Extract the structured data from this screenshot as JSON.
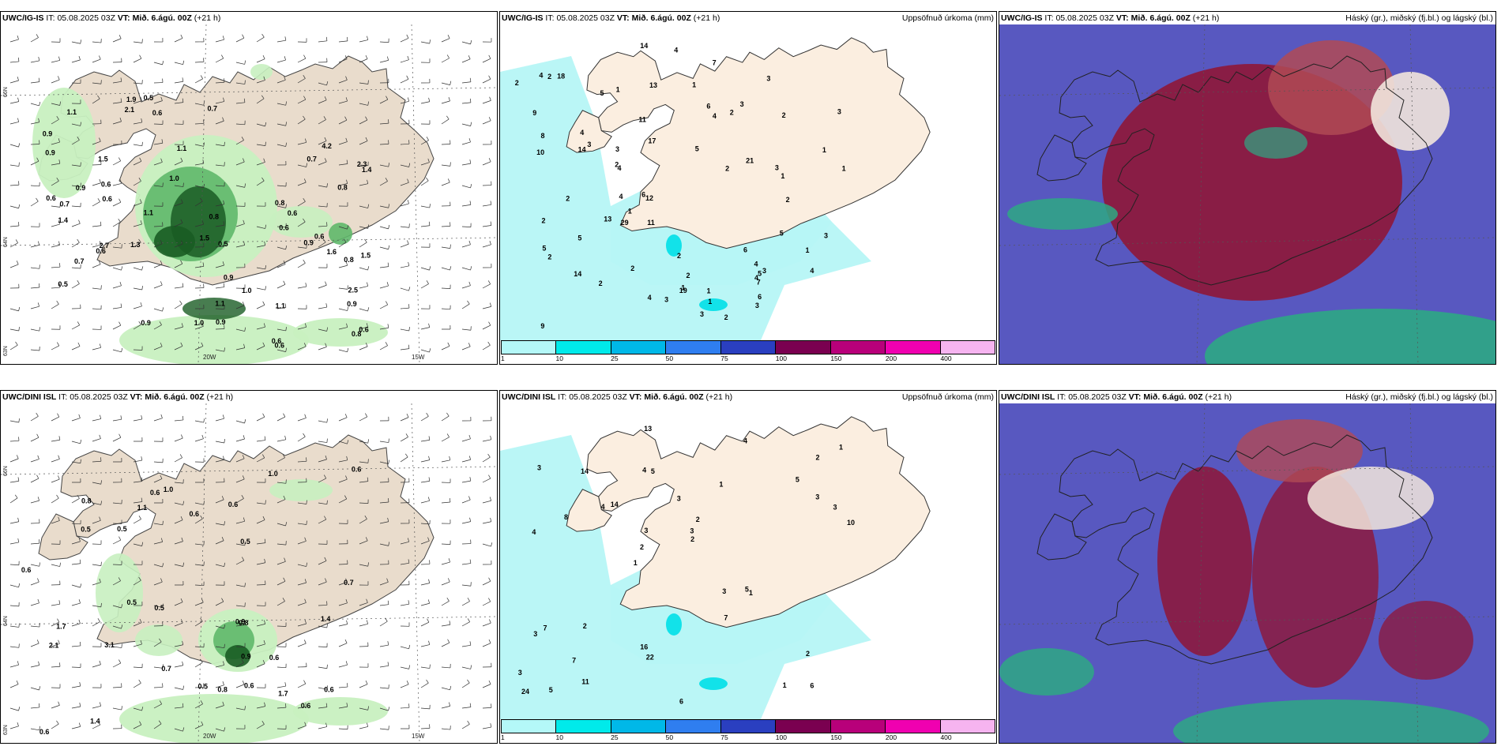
{
  "panels": {
    "p1": {
      "model": "UWC/IG-IS",
      "it_label": "IT:",
      "it_value": "05.08.2025 03Z",
      "vt_label": "VT:",
      "vt_value": "Mið. 6.ágú. 00Z",
      "lead": "(+21 h)",
      "right_title": ""
    },
    "p2": {
      "model": "UWC/IG-IS",
      "it_label": "IT:",
      "it_value": "05.08.2025 03Z",
      "vt_label": "VT:",
      "vt_value": "Mið. 6.ágú. 00Z",
      "lead": "(+21 h)",
      "right_title": "Uppsöfnuð úrkoma (mm)"
    },
    "p3": {
      "model": "UWC/IG-IS",
      "it_label": "IT:",
      "it_value": "05.08.2025 03Z",
      "vt_label": "VT:",
      "vt_value": "Mið. 6.ágú. 00Z",
      "lead": "(+21 h)",
      "right_title": "Háský (gr.), miðský (fj.bl.) og lágský (bl.)"
    },
    "p4": {
      "model": "UWC/DINI ISL",
      "it_label": "IT:",
      "it_value": "05.08.2025 03Z",
      "vt_label": "VT:",
      "vt_value": "Mið. 6.ágú. 00Z",
      "lead": "(+21 h)",
      "right_title": ""
    },
    "p5": {
      "model": "UWC/DINI ISL",
      "it_label": "IT:",
      "it_value": "05.08.2025 03Z",
      "vt_label": "VT:",
      "vt_value": "Mið. 6.ágú. 00Z",
      "lead": "(+21 h)",
      "right_title": "Uppsöfnuð úrkoma (mm)"
    },
    "p6": {
      "model": "UWC/DINI ISL",
      "it_label": "IT:",
      "it_value": "05.08.2025 03Z",
      "vt_label": "VT:",
      "vt_value": "Mið. 6.ágú. 00Z",
      "lead": "(+21 h)",
      "right_title": "Háský (gr.), miðský (fj.bl.) og lágský (bl.)"
    }
  },
  "grid_labels": {
    "lon_20w": "20W",
    "lon_15w": "15W",
    "lat_66n": "66N",
    "lat_64n": "64N",
    "lat_63n": "63N"
  },
  "colorbar": {
    "ticks": [
      "1",
      "10",
      "25",
      "50",
      "75",
      "100",
      "150",
      "200",
      "400"
    ],
    "colors": [
      "#b4f8f8",
      "#00eaea",
      "#00b8e8",
      "#2f7ef0",
      "#2a3fc0",
      "#7a0050",
      "#b8007a",
      "#f000b0",
      "#f6b4f0"
    ]
  },
  "colors": {
    "land": "#e9dccc",
    "ocean": "#ffffff",
    "precip_light": "#c8f0c0",
    "precip_dark": "#1a5c24",
    "precip_mid": "#5fb86a",
    "accum_light": "#b6f6f6",
    "cloud_blue": "#5858c0",
    "cloud_red": "#8c1a3e",
    "cloud_green": "#2ea884"
  },
  "p1_labels": [
    "2.5",
    "1.6",
    "4.2",
    "0.8",
    "1.1",
    "0.6",
    "1.4",
    "2.7",
    "0.5",
    "1.0",
    "0.7",
    "0.8",
    "0.6",
    "0.6",
    "1.1",
    "0.9",
    "0.7",
    "0.6",
    "0.8",
    "0.7",
    "1.5",
    "0.8",
    "0.8",
    "1.3",
    "0.6",
    "1.5",
    "1.4",
    "0.9",
    "0.9",
    "0.6",
    "0.6",
    "0.9",
    "2.3",
    "1.5",
    "0.6",
    "1.1",
    "1.0",
    "0.6",
    "0.9",
    "0.7",
    "0.5",
    "0.9",
    "1.1",
    "1.0",
    "2.1",
    "0.6",
    "1.9",
    "1.1",
    "0.5",
    "0.9",
    "0.6",
    "0.9"
  ],
  "p2_labels": [
    "4",
    "2",
    "5",
    "2",
    "1",
    "2",
    "1",
    "2",
    "3",
    "4",
    "5",
    "4",
    "3",
    "2",
    "3",
    "1",
    "4",
    "5",
    "3",
    "1",
    "18",
    "2",
    "14",
    "4",
    "1",
    "2",
    "7",
    "3",
    "1",
    "3",
    "4",
    "6",
    "5",
    "2",
    "4",
    "11",
    "2",
    "3",
    "12",
    "13",
    "9",
    "14",
    "4",
    "5",
    "10",
    "6",
    "8",
    "11",
    "14",
    "13",
    "19",
    "9",
    "6",
    "21",
    "3",
    "2",
    "29",
    "17",
    "2",
    "7",
    "6",
    "4",
    "3",
    "5",
    "1",
    "2",
    "1",
    "2",
    "1",
    "2",
    "3",
    "3",
    "4",
    "2",
    "1"
  ],
  "p4_labels": [
    "0.7",
    "1.0",
    "1.4",
    "3.1",
    "0.6",
    "1.0",
    "1.4",
    "0.6",
    "0.6",
    "0.8",
    "1.1",
    "0.6",
    "0.6",
    "0.5",
    "0.6",
    "0.8",
    "0.6",
    "0.9",
    "0.6",
    "0.8",
    "1.7",
    "2.1",
    "1.7",
    "0.5",
    "0.5",
    "0.7",
    "0.5",
    "0.9",
    "0.6",
    "0.6",
    "0.5",
    "0.5"
  ],
  "p5_labels": [
    "6",
    "4",
    "2",
    "1",
    "1",
    "5",
    "4",
    "3",
    "7",
    "14",
    "3",
    "7",
    "5",
    "2",
    "1",
    "3",
    "13",
    "10",
    "3",
    "3",
    "2",
    "16",
    "3",
    "14",
    "4",
    "2",
    "1",
    "2",
    "5",
    "6",
    "4",
    "8",
    "7",
    "11",
    "3",
    "3",
    "24",
    "22",
    "2",
    "3",
    "5",
    "1"
  ]
}
